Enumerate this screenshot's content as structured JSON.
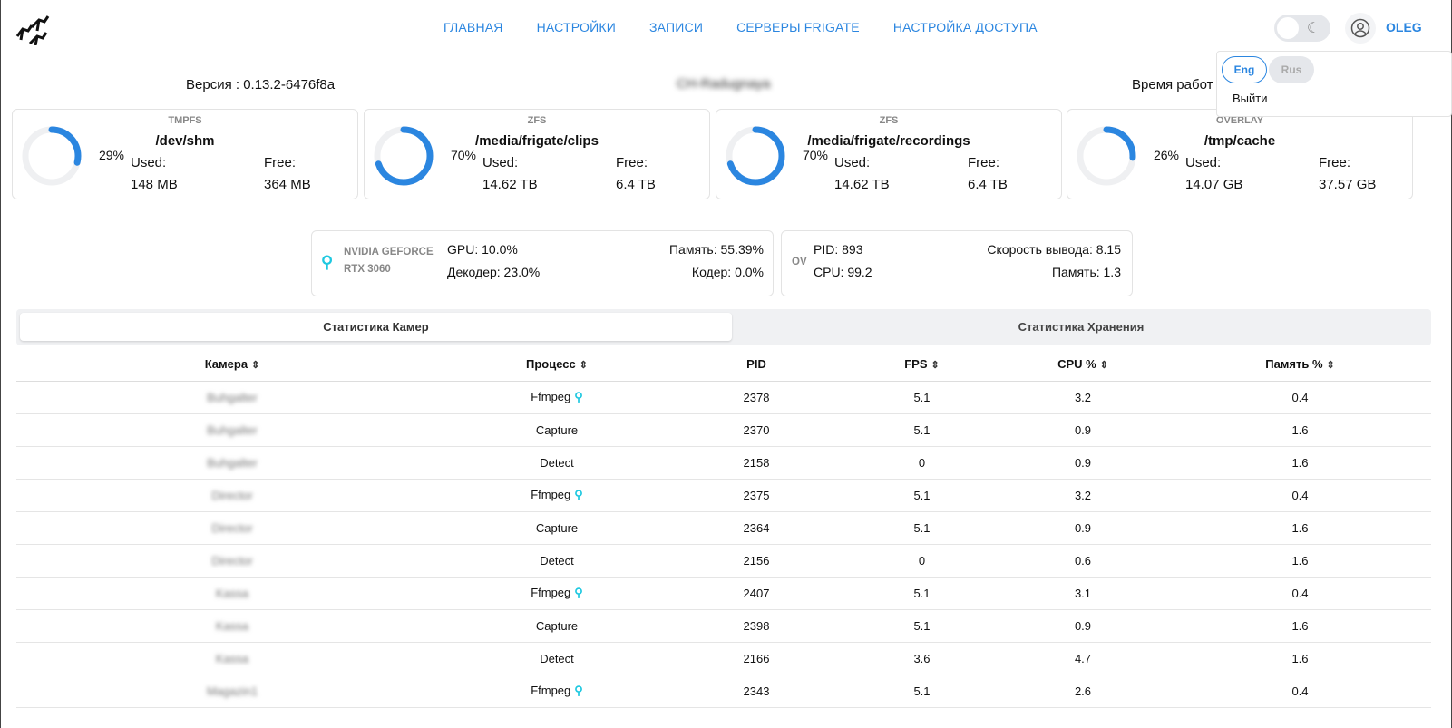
{
  "nav": {
    "items": [
      "ГЛАВНАЯ",
      "НАСТРОЙКИ",
      "ЗАПИСИ",
      "СЕРВЕРЫ FRIGATE",
      "НАСТРОЙКА ДОСТУПА"
    ],
    "user": "OLEG",
    "accent": "#2b86e0"
  },
  "dropdown": {
    "eng": "Eng",
    "rus": "Rus",
    "logout": "Выйти"
  },
  "info": {
    "version": "Версия : 0.13.2-6476f8a",
    "host": "CH-Radugnaya",
    "uptime": "Время работ"
  },
  "disks": [
    {
      "type": "TMPFS",
      "path": "/dev/shm",
      "percent": 29,
      "percent_label": "29%",
      "used_label": "Used:",
      "used": "148 MB",
      "free_label": "Free:",
      "free": "364 MB"
    },
    {
      "type": "ZFS",
      "path": "/media/frigate/clips",
      "percent": 70,
      "percent_label": "70%",
      "used_label": "Used:",
      "used": "14.62 TB",
      "free_label": "Free:",
      "free": "6.4 TB"
    },
    {
      "type": "ZFS",
      "path": "/media/frigate/recordings",
      "percent": 70,
      "percent_label": "70%",
      "used_label": "Used:",
      "used": "14.62 TB",
      "free_label": "Free:",
      "free": "6.4 TB"
    },
    {
      "type": "OVERLAY",
      "path": "/tmp/cache",
      "percent": 26,
      "percent_label": "26%",
      "used_label": "Used:",
      "used": "14.07 GB",
      "free_label": "Free:",
      "free": "37.57 GB"
    }
  ],
  "gpu": {
    "name1": "NVIDIA GEFORCE",
    "name2": "RTX 3060",
    "gpu": "GPU: 10.0%",
    "decoder": "Декодер: 23.0%",
    "memory": "Память: 55.39%",
    "encoder": "Кодер: 0.0%"
  },
  "detector": {
    "name": "OV",
    "pid": "PID: 893",
    "cpu": "CPU: 99.2",
    "speed": "Скорость вывода: 8.15",
    "memory": "Память: 1.3"
  },
  "tabs": [
    "Статистика Камер",
    "Статистика Хранения"
  ],
  "table": {
    "headers": [
      "Камера",
      "Процесс",
      "PID",
      "FPS",
      "CPU %",
      "Память %"
    ],
    "rows": [
      [
        "Buhgalter",
        "Ffmpeg",
        "2378",
        "5.1",
        "3.2",
        "0.4"
      ],
      [
        "Buhgalter",
        "Capture",
        "2370",
        "5.1",
        "0.9",
        "1.6"
      ],
      [
        "Buhgalter",
        "Detect",
        "2158",
        "0",
        "0.9",
        "1.6"
      ],
      [
        "Director",
        "Ffmpeg",
        "2375",
        "5.1",
        "3.2",
        "0.4"
      ],
      [
        "Director",
        "Capture",
        "2364",
        "5.1",
        "0.9",
        "1.6"
      ],
      [
        "Director",
        "Detect",
        "2156",
        "0",
        "0.6",
        "1.6"
      ],
      [
        "Kassa",
        "Ffmpeg",
        "2407",
        "5.1",
        "3.1",
        "0.4"
      ],
      [
        "Kassa",
        "Capture",
        "2398",
        "5.1",
        "0.9",
        "1.6"
      ],
      [
        "Kassa",
        "Detect",
        "2166",
        "3.6",
        "4.7",
        "1.6"
      ],
      [
        "Magazin1",
        "Ffmpeg",
        "2343",
        "5.1",
        "2.6",
        "0.4"
      ]
    ]
  }
}
